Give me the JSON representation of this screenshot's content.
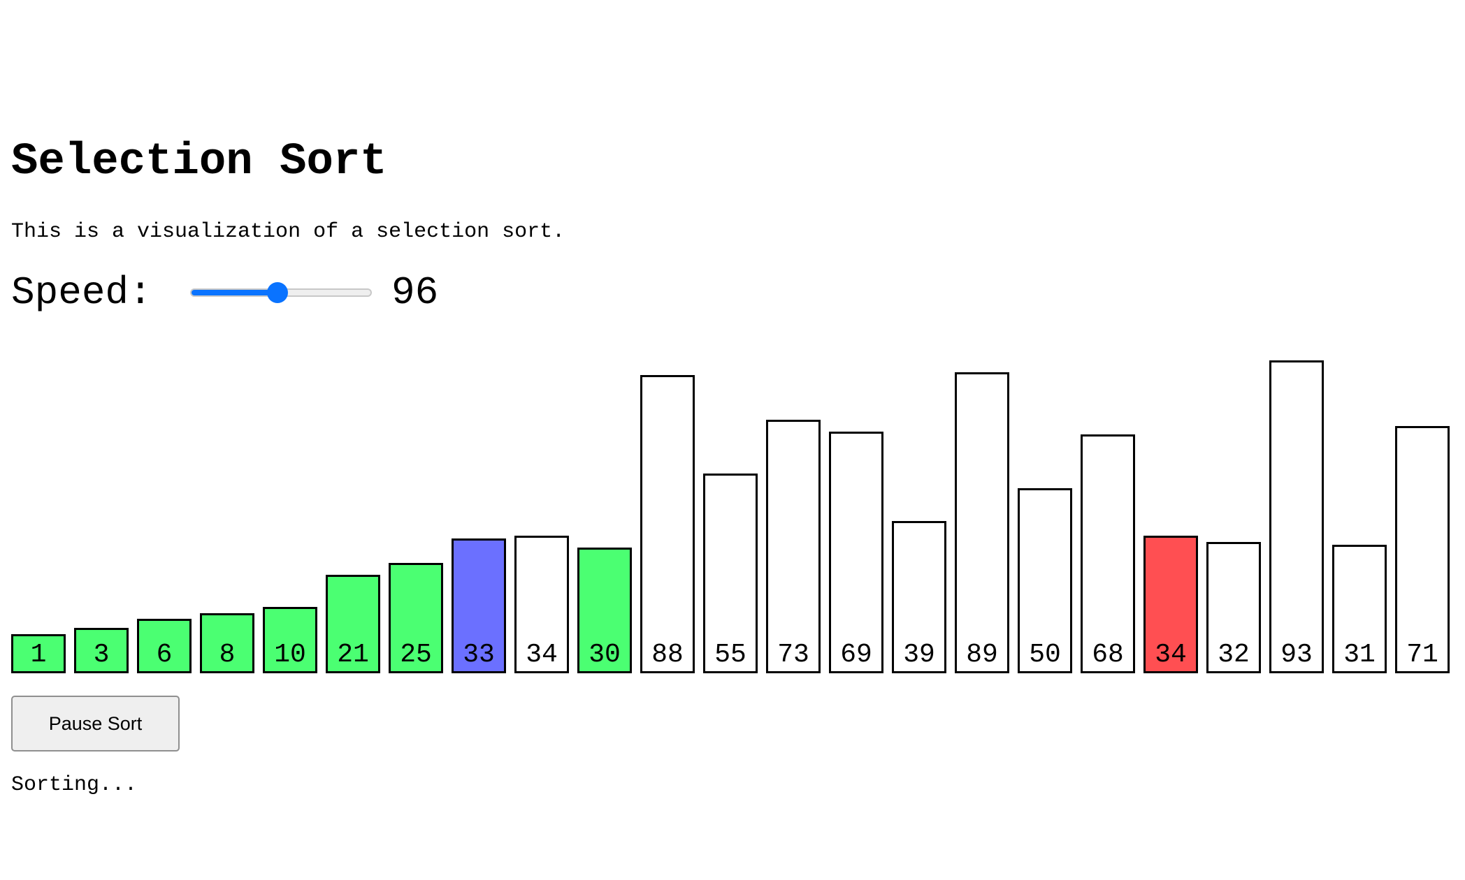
{
  "title": "Selection Sort",
  "description": "This is a visualization of a selection sort.",
  "speed": {
    "label": "Speed:",
    "value": "96",
    "slider_fraction": 0.48
  },
  "colors": {
    "sorted": "#4bff72",
    "current": "#6b70ff",
    "compare": "#ff4f52",
    "default": "#ffffff",
    "accent": "#0a73ff"
  },
  "chart_data": {
    "type": "bar",
    "values": [
      1,
      3,
      6,
      8,
      10,
      21,
      25,
      33,
      34,
      30,
      88,
      55,
      73,
      69,
      39,
      89,
      50,
      68,
      34,
      32,
      93,
      31,
      71
    ],
    "states": [
      "sorted",
      "sorted",
      "sorted",
      "sorted",
      "sorted",
      "sorted",
      "sorted",
      "current",
      "default",
      "sorted",
      "default",
      "default",
      "default",
      "default",
      "default",
      "default",
      "default",
      "default",
      "compare",
      "default",
      "default",
      "default",
      "default"
    ]
  },
  "pause_button_label": "Pause Sort",
  "status": "Sorting..."
}
